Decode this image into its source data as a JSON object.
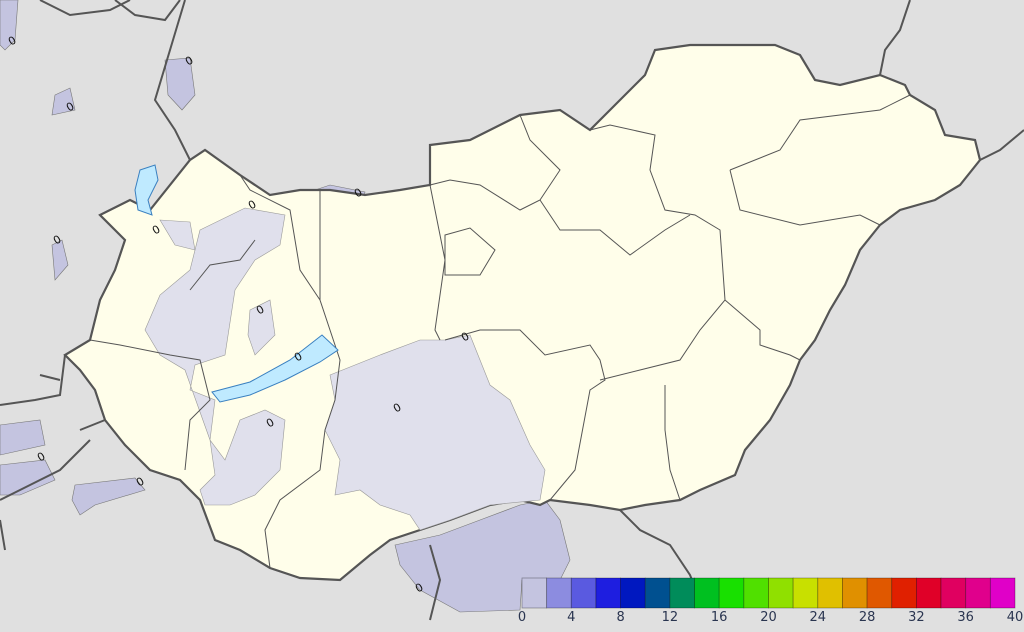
{
  "map": {
    "region": "Hungary",
    "colors": {
      "background": "#e0e0e0",
      "land": "#fffeea",
      "precip_light_outside": "#c4c4e0",
      "precip_light_inside": "#e0e0ec",
      "lake": "#bfeaff",
      "border": "#555555"
    },
    "contour_labels": [
      "0",
      "0",
      "0",
      "0",
      "0",
      "0",
      "0",
      "0",
      "0",
      "0",
      "0",
      "0",
      "0",
      "0",
      "0"
    ]
  },
  "legend": {
    "ticks": [
      "0",
      "4",
      "8",
      "12",
      "16",
      "20",
      "24",
      "28",
      "32",
      "36",
      "40"
    ],
    "colors": [
      "#c4c4e0",
      "#8c8ce0",
      "#5a5ae0",
      "#1e1ee0",
      "#0018c0",
      "#005090",
      "#008c5a",
      "#00c020",
      "#18e000",
      "#50e000",
      "#90e000",
      "#c8e000",
      "#e0c000",
      "#e09000",
      "#e05800",
      "#e02000",
      "#e00028",
      "#e00060",
      "#e0008c",
      "#e000c8"
    ]
  }
}
